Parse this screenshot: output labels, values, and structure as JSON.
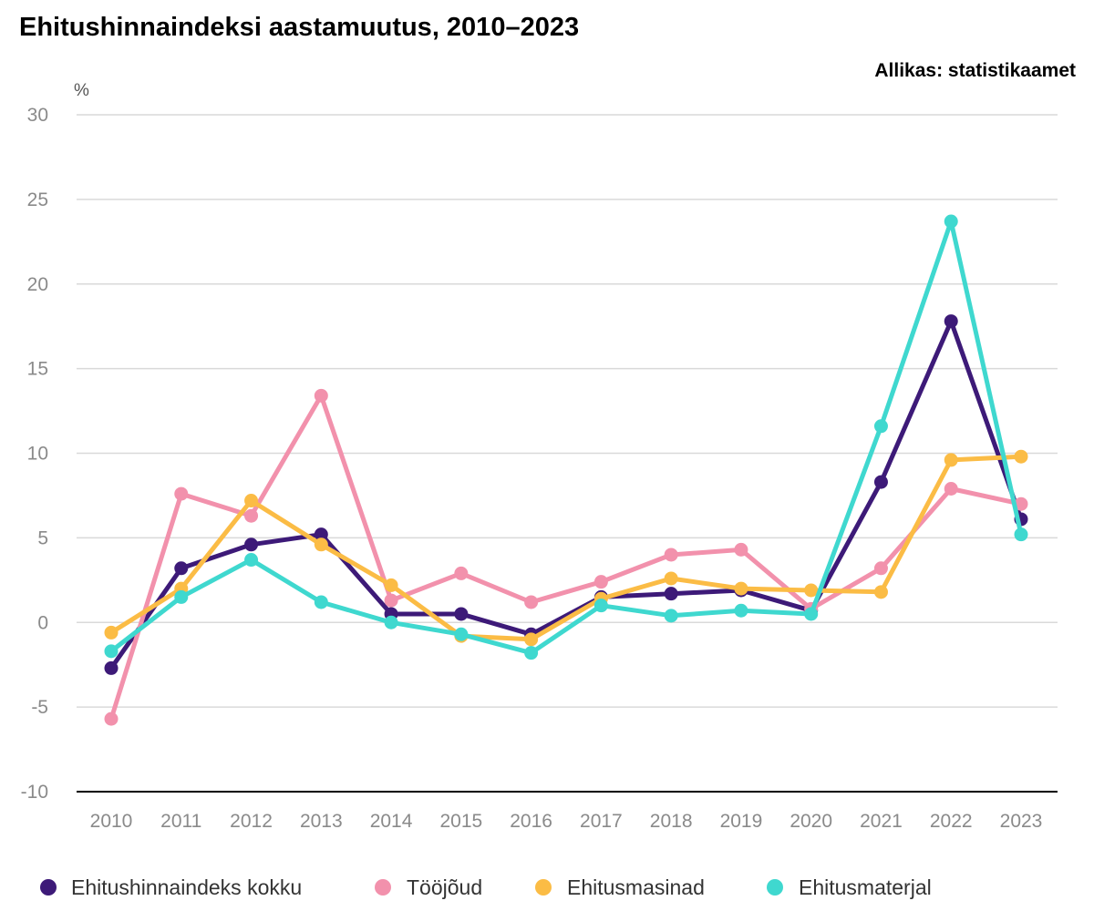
{
  "chart_data": {
    "type": "line",
    "title": "Ehitushinnaindeksi aastamuutus, 2010–2023",
    "source": "Allikas: statistikaamet",
    "ylabel": "%",
    "xlabel": "",
    "x": [
      "2010",
      "2011",
      "2012",
      "2013",
      "2014",
      "2015",
      "2016",
      "2017",
      "2018",
      "2019",
      "2020",
      "2021",
      "2022",
      "2023"
    ],
    "ylim": [
      -10,
      30
    ],
    "yticks": [
      30,
      25,
      20,
      15,
      10,
      5,
      0,
      -5,
      -10
    ],
    "grid": true,
    "legend_position": "bottom",
    "series": [
      {
        "name": "Ehitushinnaindeks kokku",
        "color": "#3d1a78",
        "values": [
          -2.7,
          3.2,
          4.6,
          5.2,
          0.5,
          0.5,
          -0.7,
          1.5,
          1.7,
          1.9,
          0.7,
          8.3,
          17.8,
          6.1
        ]
      },
      {
        "name": "Tööjõud",
        "color": "#f291ac",
        "values": [
          -5.7,
          7.6,
          6.3,
          13.4,
          1.3,
          2.9,
          1.2,
          2.4,
          4.0,
          4.3,
          0.8,
          3.2,
          7.9,
          7.0
        ]
      },
      {
        "name": "Ehitusmasinad",
        "color": "#fbbc45",
        "values": [
          -0.6,
          2.0,
          7.2,
          4.6,
          2.2,
          -0.8,
          -1.0,
          1.4,
          2.6,
          2.0,
          1.9,
          1.8,
          9.6,
          9.8
        ]
      },
      {
        "name": "Ehitusmaterjal",
        "color": "#3fd8cf",
        "values": [
          -1.7,
          1.5,
          3.7,
          1.2,
          0.0,
          -0.7,
          -1.8,
          1.0,
          0.4,
          0.7,
          0.5,
          11.6,
          23.7,
          5.2
        ]
      }
    ]
  }
}
